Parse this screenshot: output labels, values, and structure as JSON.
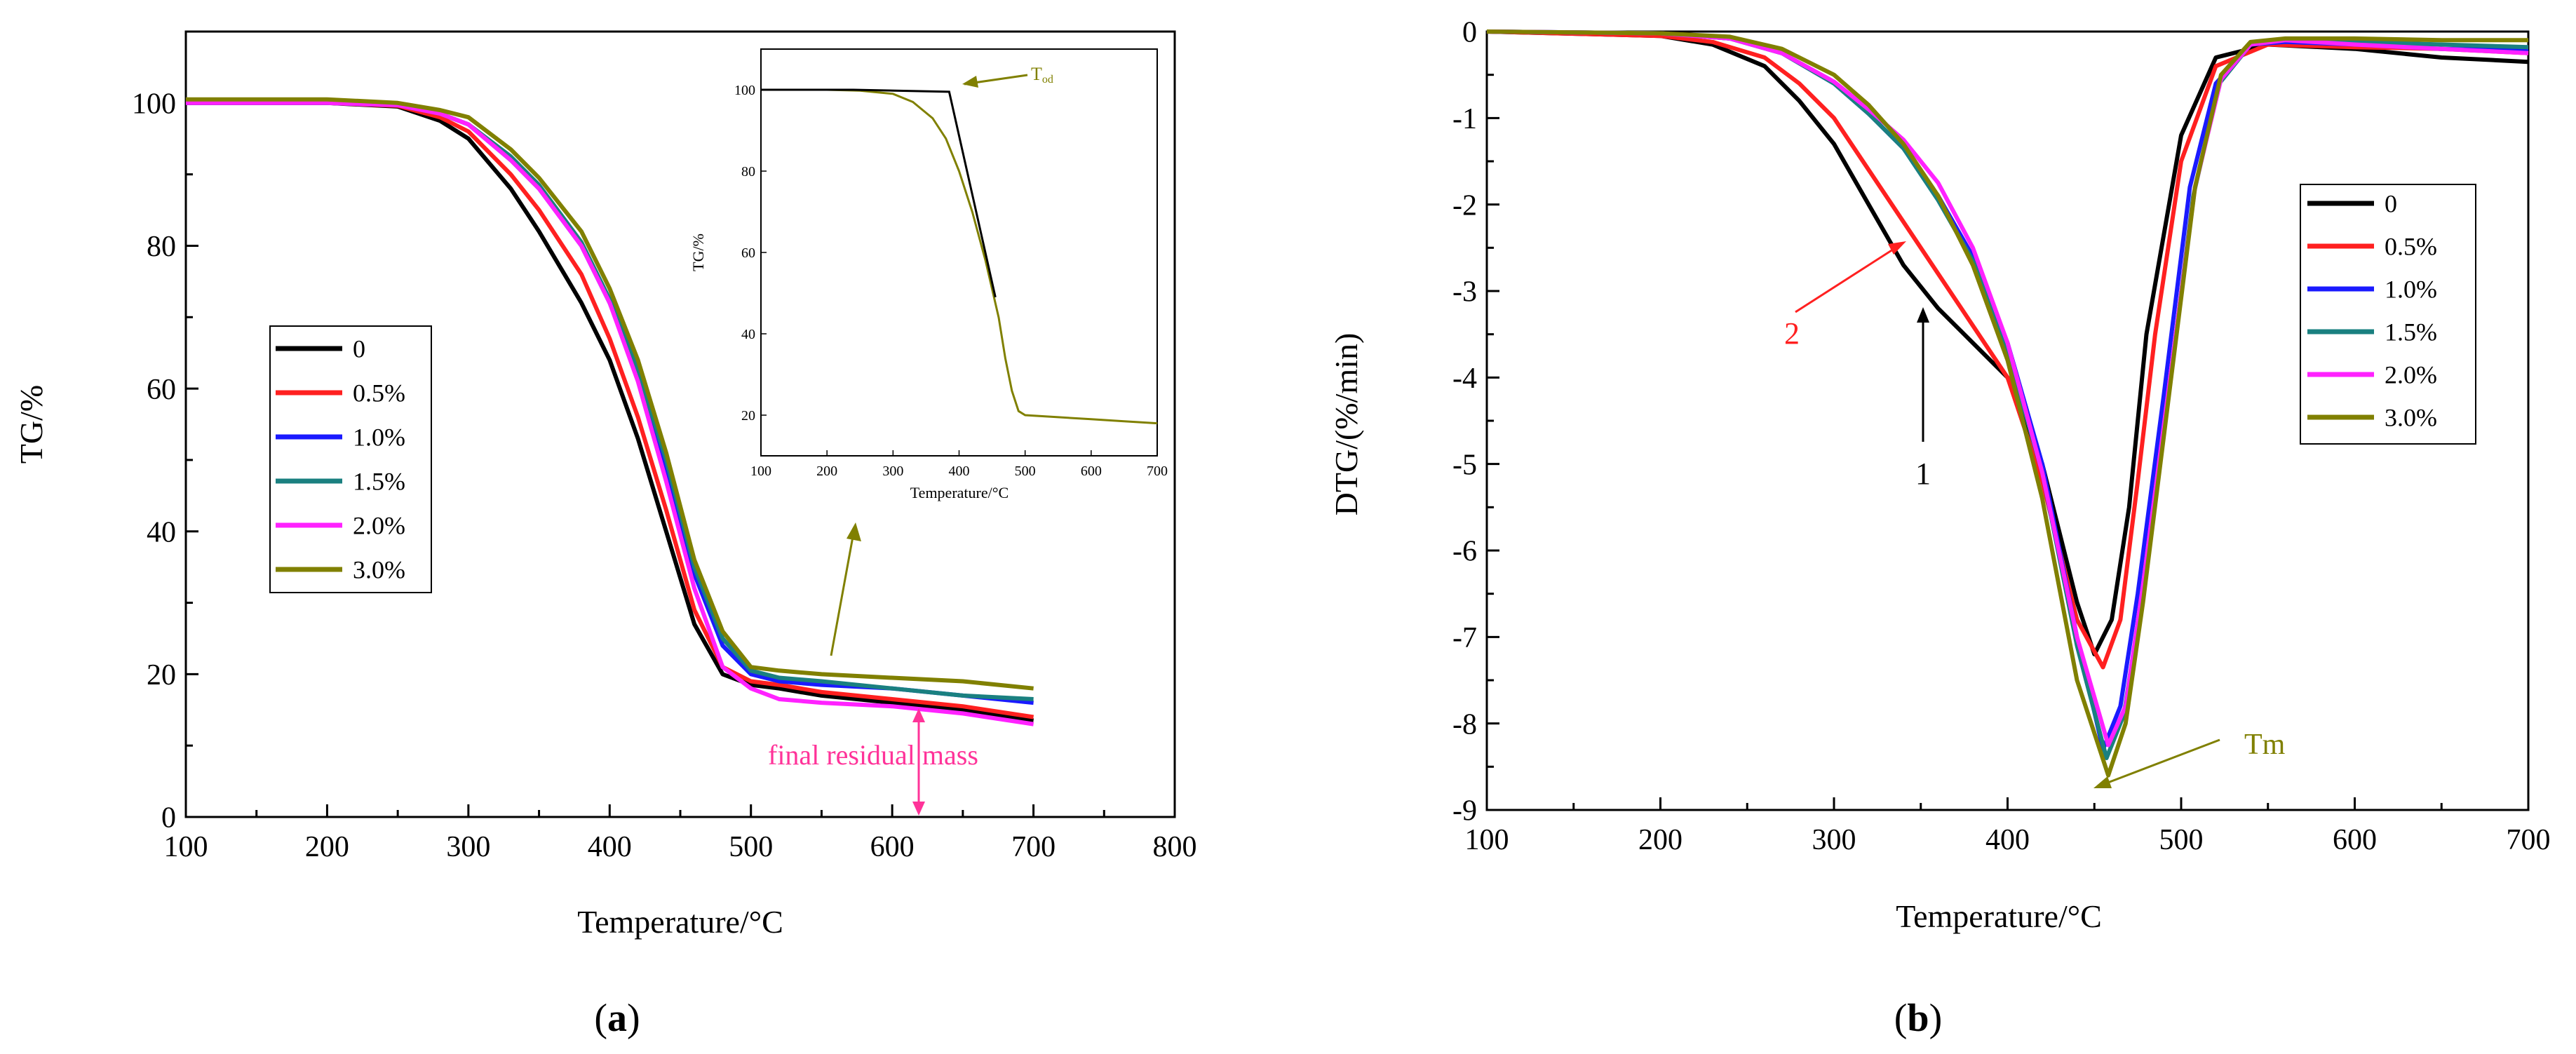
{
  "colors": {
    "s0": "#000000",
    "s05": "#ff2020",
    "s10": "#1a1aff",
    "s15": "#1a8080",
    "s20": "#ff22ff",
    "s30": "#808000",
    "annot_pink": "#ff3399",
    "annot_red": "#ff2020",
    "annot_olive": "#808000"
  },
  "chart_data": [
    {
      "type": "line",
      "panel_label": "a",
      "title": "",
      "xlabel": "Temperature/°C",
      "ylabel": "TG/%",
      "xlim": [
        100,
        800
      ],
      "ylim": [
        0,
        110
      ],
      "xticks": [
        100,
        200,
        300,
        400,
        500,
        600,
        700,
        800
      ],
      "yticks": [
        0,
        20,
        40,
        60,
        80,
        100
      ],
      "legend_position": "middle-left",
      "series": [
        {
          "name": "0",
          "color_key": "s0",
          "x": [
            100,
            200,
            250,
            280,
            300,
            330,
            350,
            380,
            400,
            420,
            440,
            460,
            480,
            500,
            520,
            550,
            600,
            650,
            700
          ],
          "y": [
            100,
            100,
            99.5,
            97.5,
            95,
            88,
            82,
            72,
            64,
            53,
            40,
            27,
            20,
            18.5,
            18,
            17,
            16,
            15,
            13.5
          ]
        },
        {
          "name": "0.5%",
          "color_key": "s05",
          "x": [
            100,
            200,
            250,
            280,
            300,
            330,
            350,
            380,
            400,
            420,
            440,
            460,
            480,
            500,
            520,
            550,
            600,
            650,
            700
          ],
          "y": [
            100,
            100,
            99.6,
            98,
            96,
            90,
            85,
            76,
            67,
            56,
            43,
            29,
            21,
            19,
            18.5,
            17.5,
            16.5,
            15.5,
            14
          ]
        },
        {
          "name": "1.0%",
          "color_key": "s10",
          "x": [
            100,
            200,
            250,
            280,
            300,
            330,
            350,
            380,
            400,
            420,
            440,
            460,
            480,
            500,
            520,
            550,
            600,
            650,
            700
          ],
          "y": [
            100,
            100,
            99.7,
            98.5,
            97,
            92,
            88,
            80,
            72,
            62,
            49,
            34,
            24,
            20,
            19,
            18.5,
            18,
            17,
            16
          ]
        },
        {
          "name": "1.5%",
          "color_key": "s15",
          "x": [
            100,
            200,
            250,
            280,
            300,
            330,
            350,
            380,
            400,
            420,
            440,
            460,
            480,
            500,
            520,
            550,
            600,
            650,
            700
          ],
          "y": [
            100,
            100,
            99.7,
            98.5,
            97,
            92.5,
            88.5,
            80.5,
            72.5,
            62.5,
            50,
            35,
            25,
            20.5,
            19.5,
            19,
            18,
            17,
            16.5
          ]
        },
        {
          "name": "2.0%",
          "color_key": "s20",
          "x": [
            100,
            200,
            250,
            280,
            300,
            330,
            350,
            380,
            400,
            420,
            440,
            460,
            480,
            500,
            520,
            550,
            600,
            650,
            700
          ],
          "y": [
            100,
            100,
            99.7,
            98.5,
            97,
            92,
            88,
            80,
            72,
            61,
            47,
            32,
            21,
            18,
            16.5,
            16,
            15.5,
            14.5,
            13
          ]
        },
        {
          "name": "3.0%",
          "color_key": "s30",
          "x": [
            100,
            200,
            250,
            280,
            300,
            330,
            350,
            380,
            400,
            420,
            440,
            460,
            480,
            500,
            520,
            550,
            600,
            650,
            700
          ],
          "y": [
            100.5,
            100.5,
            100,
            99,
            98,
            93.5,
            89.5,
            82,
            74,
            64,
            51,
            36,
            26,
            21,
            20.5,
            20,
            19.5,
            19,
            18
          ]
        }
      ],
      "annotations": {
        "final_residual_mass": "final residual mass"
      },
      "inset": {
        "xlabel": "Temperature/°C",
        "ylabel": "TG/%",
        "xlim": [
          100,
          700
        ],
        "ylim": [
          10,
          110
        ],
        "xticks": [
          100,
          200,
          300,
          400,
          500,
          600,
          700
        ],
        "yticks": [
          20,
          40,
          60,
          80,
          100
        ],
        "curve": {
          "x": [
            100,
            200,
            250,
            300,
            330,
            360,
            380,
            400,
            420,
            440,
            460,
            470,
            480,
            490,
            500,
            550,
            600,
            650,
            700
          ],
          "y": [
            100,
            100,
            99.8,
            99,
            97,
            93,
            88,
            80,
            70,
            58,
            44,
            34,
            26,
            21,
            20,
            19.5,
            19,
            18.5,
            18
          ]
        },
        "tangent": {
          "x": [
            100,
            240,
            385,
            455
          ],
          "y": [
            100,
            100,
            99.5,
            49
          ]
        },
        "tod_label": "T",
        "tod_sub": "od"
      }
    },
    {
      "type": "line",
      "panel_label": "b",
      "title": "",
      "xlabel": "Temperature/°C",
      "ylabel": "DTG/(%/min)",
      "xlim": [
        100,
        700
      ],
      "ylim": [
        -9,
        0
      ],
      "xticks": [
        100,
        200,
        300,
        400,
        500,
        600,
        700
      ],
      "yticks": [
        0,
        -1,
        -2,
        -3,
        -4,
        -5,
        -6,
        -7,
        -8,
        -9
      ],
      "legend_position": "right",
      "series": [
        {
          "name": "0",
          "color_key": "s0",
          "x": [
            100,
            200,
            230,
            260,
            280,
            300,
            320,
            340,
            360,
            380,
            400,
            420,
            440,
            450,
            460,
            470,
            480,
            500,
            520,
            550,
            600,
            650,
            700
          ],
          "y": [
            0,
            -0.05,
            -0.15,
            -0.4,
            -0.8,
            -1.3,
            -2.0,
            -2.7,
            -3.2,
            -3.6,
            -4.0,
            -5.0,
            -6.6,
            -7.2,
            -6.8,
            -5.5,
            -3.5,
            -1.2,
            -0.3,
            -0.15,
            -0.2,
            -0.3,
            -0.35
          ]
        },
        {
          "name": "0.5%",
          "color_key": "s05",
          "x": [
            100,
            200,
            230,
            260,
            280,
            300,
            320,
            340,
            360,
            380,
            400,
            420,
            440,
            455,
            465,
            475,
            485,
            500,
            520,
            550,
            600,
            650,
            700
          ],
          "y": [
            0,
            -0.05,
            -0.12,
            -0.3,
            -0.6,
            -1.0,
            -1.6,
            -2.2,
            -2.8,
            -3.4,
            -4.0,
            -5.2,
            -6.8,
            -7.35,
            -6.8,
            -5.2,
            -3.5,
            -1.5,
            -0.4,
            -0.15,
            -0.18,
            -0.2,
            -0.25
          ]
        },
        {
          "name": "1.0%",
          "color_key": "s10",
          "x": [
            100,
            200,
            240,
            270,
            300,
            320,
            340,
            360,
            380,
            400,
            420,
            440,
            455,
            465,
            475,
            490,
            505,
            520,
            540,
            560,
            600,
            650,
            700
          ],
          "y": [
            0,
            -0.02,
            -0.08,
            -0.25,
            -0.6,
            -0.95,
            -1.35,
            -1.9,
            -2.6,
            -3.6,
            -5.0,
            -7.0,
            -8.3,
            -7.8,
            -6.5,
            -4.2,
            -1.8,
            -0.6,
            -0.15,
            -0.12,
            -0.15,
            -0.2,
            -0.22
          ]
        },
        {
          "name": "1.5%",
          "color_key": "s15",
          "x": [
            100,
            200,
            240,
            270,
            300,
            320,
            340,
            360,
            380,
            400,
            420,
            440,
            457,
            467,
            477,
            492,
            507,
            522,
            540,
            560,
            600,
            650,
            700
          ],
          "y": [
            0,
            -0.02,
            -0.08,
            -0.25,
            -0.6,
            -0.95,
            -1.35,
            -1.95,
            -2.65,
            -3.7,
            -5.1,
            -7.1,
            -8.4,
            -7.9,
            -6.6,
            -4.3,
            -1.9,
            -0.6,
            -0.15,
            -0.1,
            -0.12,
            -0.15,
            -0.18
          ]
        },
        {
          "name": "2.0%",
          "color_key": "s20",
          "x": [
            100,
            200,
            240,
            270,
            300,
            320,
            340,
            360,
            380,
            400,
            420,
            440,
            458,
            468,
            478,
            493,
            508,
            523,
            540,
            560,
            600,
            650,
            700
          ],
          "y": [
            0,
            -0.02,
            -0.08,
            -0.25,
            -0.58,
            -0.9,
            -1.25,
            -1.75,
            -2.5,
            -3.6,
            -5.1,
            -7.0,
            -8.25,
            -7.8,
            -6.4,
            -4.1,
            -1.8,
            -0.55,
            -0.15,
            -0.1,
            -0.15,
            -0.2,
            -0.25
          ]
        },
        {
          "name": "3.0%",
          "color_key": "s30",
          "x": [
            100,
            200,
            240,
            270,
            300,
            320,
            340,
            360,
            380,
            400,
            420,
            440,
            458,
            468,
            478,
            493,
            508,
            523,
            540,
            560,
            600,
            650,
            700
          ],
          "y": [
            0,
            -0.02,
            -0.06,
            -0.2,
            -0.5,
            -0.85,
            -1.3,
            -1.9,
            -2.7,
            -3.8,
            -5.4,
            -7.5,
            -8.6,
            -8.0,
            -6.6,
            -4.2,
            -1.8,
            -0.5,
            -0.12,
            -0.08,
            -0.08,
            -0.1,
            -0.1
          ]
        }
      ],
      "annotations": {
        "label_1": "1",
        "label_2": "2",
        "tm": "Tm"
      }
    }
  ],
  "panel_labels": {
    "a_open": "(",
    "a": "a",
    "a_close": ")",
    "b_open": "(",
    "b": "b",
    "b_close": ")"
  }
}
